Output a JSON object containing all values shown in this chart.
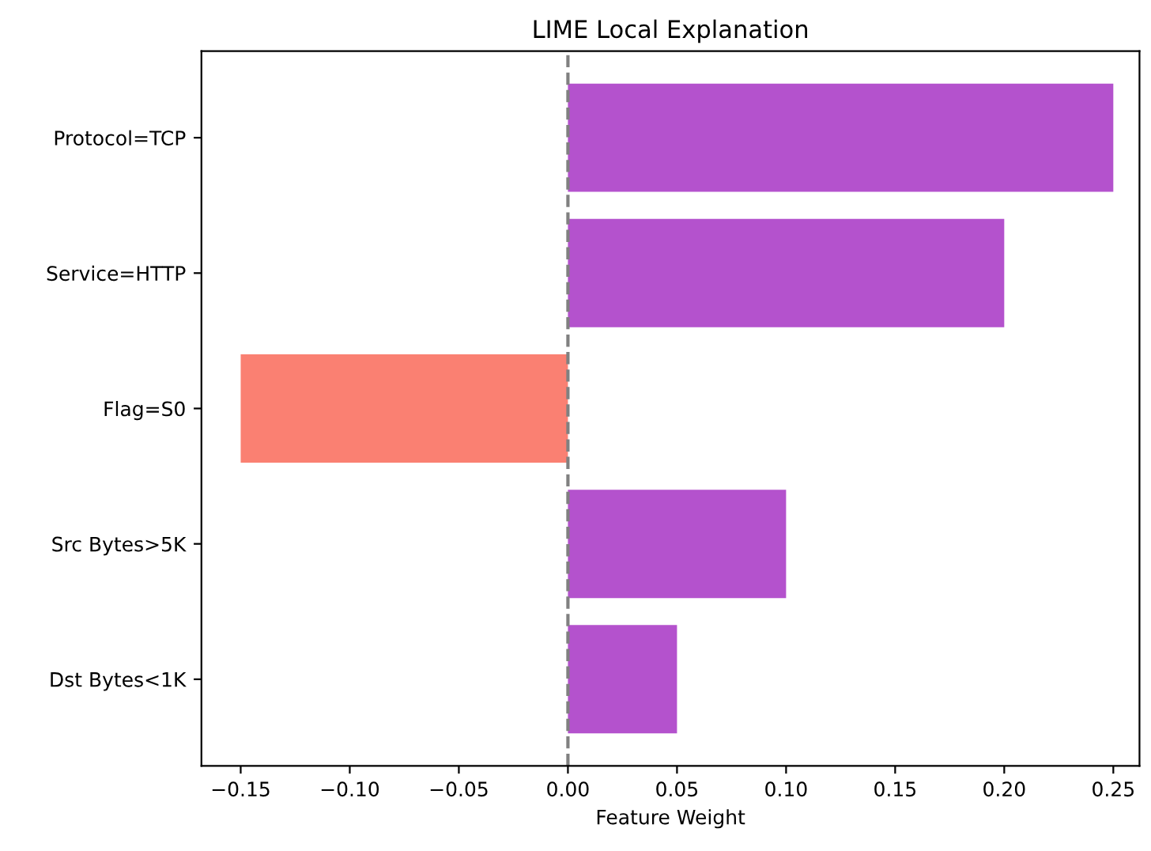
{
  "chart_data": {
    "type": "bar",
    "orientation": "horizontal",
    "title": "LIME Local Explanation",
    "xlabel": "Feature Weight",
    "categories": [
      "Protocol=TCP",
      "Service=HTTP",
      "Flag=S0",
      "Src Bytes>5K",
      "Dst Bytes<1K"
    ],
    "values": [
      0.25,
      0.2,
      -0.15,
      0.1,
      0.05
    ],
    "colors": [
      "#b452cd",
      "#b452cd",
      "#fa8072",
      "#b452cd",
      "#b452cd"
    ],
    "xlim": [
      -0.168,
      0.262
    ],
    "xticks": [
      {
        "value": -0.15,
        "label": "−0.15"
      },
      {
        "value": -0.1,
        "label": "−0.10"
      },
      {
        "value": -0.05,
        "label": "−0.05"
      },
      {
        "value": 0.0,
        "label": "0.00"
      },
      {
        "value": 0.05,
        "label": "0.05"
      },
      {
        "value": 0.1,
        "label": "0.10"
      },
      {
        "value": 0.15,
        "label": "0.15"
      },
      {
        "value": 0.2,
        "label": "0.20"
      },
      {
        "value": 0.25,
        "label": "0.25"
      }
    ],
    "ref_lines": [
      {
        "axis": "x",
        "value": 0,
        "color": "#808080",
        "line_style": "dashed"
      }
    ],
    "grid": false,
    "legend": false
  }
}
